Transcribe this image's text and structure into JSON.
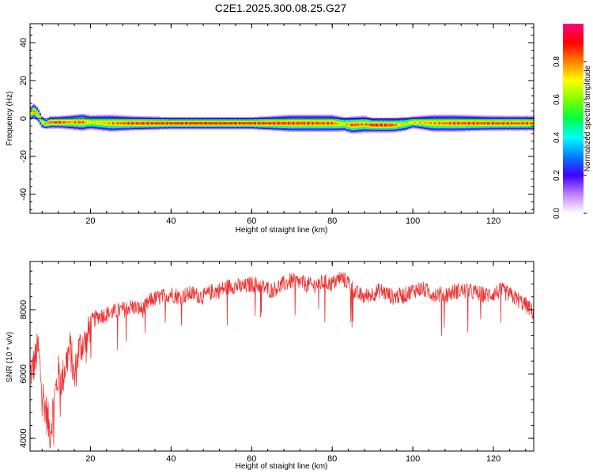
{
  "title": "C2E1.2025.300.08.25.G27",
  "chart_data": [
    {
      "type": "heatmap",
      "xlabel": "Height of straight line (km)",
      "ylabel": "Frequency (Hz)",
      "xlim": [
        5,
        130
      ],
      "ylim": [
        -50,
        50
      ],
      "xticks": [
        20,
        40,
        60,
        80,
        100,
        120
      ],
      "yticks": [
        -40,
        -20,
        0,
        20,
        40
      ],
      "grid": false,
      "colorbar": {
        "label": "Normalized spectral amplitude",
        "range": [
          0,
          1
        ],
        "ticks": [
          0.0,
          0.2,
          0.4,
          0.6,
          0.8
        ],
        "colors": [
          "#ffffff",
          "#c080ff",
          "#4000ff",
          "#0080ff",
          "#00ffff",
          "#00ff40",
          "#80ff00",
          "#ffff00",
          "#ff8000",
          "#ff0000",
          "#ff0080"
        ]
      },
      "ridge": {
        "x": [
          5,
          6,
          7,
          8,
          9,
          10,
          12,
          15,
          18,
          20,
          25,
          30,
          40,
          50,
          60,
          70,
          80,
          83,
          85,
          88,
          90,
          95,
          98,
          100,
          105,
          110,
          120,
          130
        ],
        "frequency": [
          2.5,
          4,
          2,
          -2,
          -3,
          -2,
          -2,
          -2,
          -2,
          -2,
          -2.5,
          -2.5,
          -2.5,
          -2.5,
          -2.5,
          -2.5,
          -2.5,
          -3,
          -3.5,
          -3,
          -3.5,
          -3.5,
          -3,
          -2,
          -2.5,
          -2.5,
          -2.5,
          -2.5
        ],
        "amplitude": [
          0.7,
          0.9,
          0.8,
          0.75,
          0.85,
          0.9,
          0.95,
          0.85,
          0.9,
          0.75,
          0.85,
          0.92,
          0.95,
          0.96,
          0.95,
          0.92,
          0.9,
          0.75,
          0.92,
          0.85,
          0.95,
          0.92,
          0.7,
          0.8,
          0.85,
          0.9,
          0.92,
          0.9
        ],
        "spread_hz": [
          3,
          3,
          3,
          2.5,
          2,
          2.5,
          2.5,
          3,
          3.5,
          3,
          3.5,
          3,
          2.5,
          2.5,
          2.5,
          3.5,
          3.5,
          3,
          3.5,
          3.5,
          3,
          3,
          3,
          2.5,
          3.5,
          3.5,
          3,
          3
        ]
      }
    },
    {
      "type": "line",
      "xlabel": "Height of straight line (km)",
      "ylabel": "SNR (10 * v/v)",
      "xlim": [
        5,
        130
      ],
      "ylim": [
        3600,
        9500
      ],
      "xticks": [
        20,
        40,
        60,
        80,
        100,
        120
      ],
      "yticks": [
        4000,
        6000,
        8000
      ],
      "grid": false,
      "color": "#ee3333",
      "series": [
        {
          "x": [
            5,
            6,
            7,
            8,
            9,
            10,
            11,
            12,
            13,
            14,
            15,
            16,
            17,
            18,
            19,
            20,
            22,
            25,
            28,
            30,
            33,
            35,
            38,
            40,
            42,
            45,
            48,
            50,
            52,
            55,
            58,
            60,
            62,
            65,
            68,
            70,
            72,
            75,
            78,
            80,
            82,
            84,
            86,
            88,
            90,
            92,
            95,
            98,
            100,
            102,
            105,
            108,
            110,
            112,
            115,
            118,
            120,
            122,
            125,
            128,
            130
          ],
          "y": [
            6000,
            6300,
            6800,
            5500,
            4800,
            4200,
            5200,
            6000,
            5800,
            6400,
            6800,
            5800,
            6700,
            7000,
            6900,
            7600,
            7800,
            7900,
            8000,
            8100,
            8000,
            8300,
            8400,
            8500,
            8400,
            8500,
            8400,
            8550,
            8600,
            8750,
            8700,
            8800,
            8750,
            8600,
            8800,
            8900,
            8850,
            8750,
            8850,
            8800,
            9000,
            8850,
            8500,
            8400,
            8500,
            8600,
            8400,
            8450,
            8600,
            8650,
            8500,
            8450,
            8550,
            8600,
            8550,
            8450,
            8500,
            8600,
            8400,
            8150,
            7900
          ],
          "noise": 260
        }
      ]
    }
  ]
}
